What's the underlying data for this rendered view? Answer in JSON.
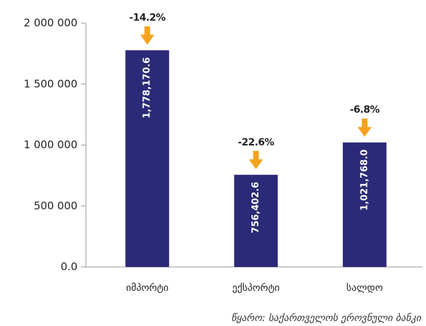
{
  "chart_data": {
    "type": "bar",
    "categories": [
      "იმპორტი",
      "ექსპორტი",
      "სალდო"
    ],
    "values": [
      1778170.6,
      756402.6,
      1021768.0
    ],
    "value_labels": [
      "1,778,170.6",
      "756,402.6",
      "1,021,768.0"
    ],
    "annotations": [
      "-14.2%",
      "-22.6%",
      "-6.8%"
    ],
    "color": "#2b2a78",
    "arrow_color": "#f5a21c",
    "ylim": [
      0,
      2000000
    ],
    "yticks": [
      {
        "value": 0,
        "label": "0.0"
      },
      {
        "value": 500000,
        "label": "500 000"
      },
      {
        "value": 1000000,
        "label": "1 000 000"
      },
      {
        "value": 1500000,
        "label": "1 500 000"
      },
      {
        "value": 2000000,
        "label": "2 000 000"
      }
    ],
    "source": "წყარო: საქართველოს ეროვნული ბანკი"
  }
}
